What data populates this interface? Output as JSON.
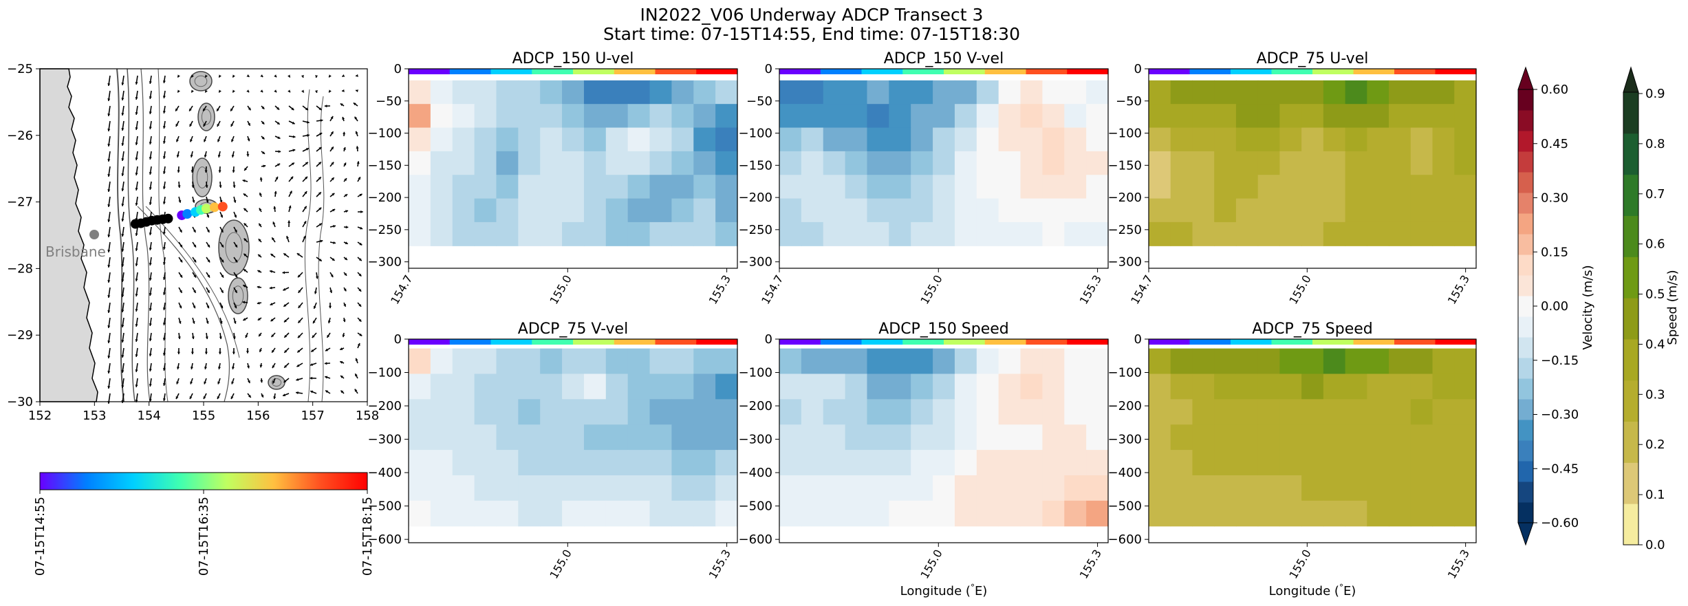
{
  "figure": {
    "title_line1": "IN2022_V06 Underway ADCP Transect 3",
    "title_line2": "Start time: 07-15T14:55, End time: 07-15T18:30"
  },
  "map": {
    "x_ticks": [
      "152",
      "153",
      "154",
      "155",
      "156",
      "157",
      "158"
    ],
    "y_ticks": [
      "−25",
      "−26",
      "−27",
      "−28",
      "−29",
      "−30"
    ],
    "city_label": "Brisbane",
    "land_color": "#d9d9d9",
    "track_lon": [
      153.75,
      153.85,
      153.95,
      154.05,
      154.15,
      154.25,
      154.35,
      154.6,
      154.7,
      154.85,
      154.95,
      155.05,
      155.2,
      155.35
    ],
    "track_lat": [
      -27.33,
      -27.32,
      -27.3,
      -27.28,
      -27.27,
      -27.26,
      -27.25,
      -27.2,
      -27.18,
      -27.15,
      -27.12,
      -27.1,
      -27.08,
      -27.07
    ]
  },
  "time_colorbar": {
    "labels": [
      "07-15T14:55",
      "07-15T16:35",
      "07-15T18:15"
    ],
    "colors": [
      "#6a00ff",
      "#0080ff",
      "#00d0ff",
      "#40ffb0",
      "#c0ff60",
      "#ffc040",
      "#ff5020",
      "#ff0000"
    ]
  },
  "velocity_colorbar": {
    "label": "Velocity (m/s)",
    "ticks": [
      "0.60",
      "0.45",
      "0.30",
      "0.15",
      "0.00",
      "−0.15",
      "−0.30",
      "−0.45",
      "−0.60"
    ],
    "colors": [
      "#053061",
      "#15467f",
      "#2166ac",
      "#3a80bc",
      "#4393c3",
      "#74add1",
      "#92c5de",
      "#b4d6e8",
      "#d1e5f0",
      "#e8f1f7",
      "#f7f7f7",
      "#fbe5d8",
      "#fddbc7",
      "#f8bda0",
      "#f4a582",
      "#e5826a",
      "#d6604d",
      "#c43c3c",
      "#b2182b",
      "#8a0c25",
      "#67001f"
    ]
  },
  "speed_colorbar": {
    "label": "Speed (m/s)",
    "ticks": [
      "0.9",
      "0.8",
      "0.7",
      "0.6",
      "0.5",
      "0.4",
      "0.3",
      "0.2",
      "0.1",
      "0.0"
    ],
    "colors": [
      "#f5ec9f",
      "#ddc877",
      "#c6b84a",
      "#b5ad2e",
      "#a8a823",
      "#8e9b18",
      "#6f9a14",
      "#4c8a1c",
      "#2e7a28",
      "#1c5e30",
      "#1b3d22"
    ]
  },
  "chart_data": [
    {
      "type": "heatmap",
      "title": "ADCP_150 U-vel",
      "xlabel": "",
      "ylabel": "",
      "x_ticks": [
        "154.7",
        "155.0",
        "155.3"
      ],
      "y_ticks": [
        "0",
        "−50",
        "−100",
        "−150",
        "−200",
        "−250",
        "−300"
      ],
      "xlim": [
        154.7,
        155.32
      ],
      "ylim": [
        -310,
        0
      ],
      "depth_floor": -275,
      "colormap": "velocity",
      "values": [
        [
          0.05,
          -0.08,
          -0.1,
          -0.12,
          -0.15,
          -0.18,
          -0.22,
          -0.28,
          -0.4,
          -0.42,
          -0.38,
          -0.32,
          -0.3,
          -0.25,
          -0.2
        ],
        [
          0.22,
          -0.02,
          -0.08,
          -0.12,
          -0.2,
          -0.18,
          -0.15,
          -0.25,
          -0.3,
          -0.3,
          -0.22,
          -0.18,
          -0.22,
          -0.26,
          -0.32
        ],
        [
          0.08,
          -0.06,
          -0.12,
          -0.18,
          -0.24,
          -0.2,
          -0.12,
          -0.15,
          -0.22,
          -0.1,
          -0.06,
          -0.12,
          -0.2,
          -0.32,
          -0.38
        ],
        [
          -0.02,
          -0.1,
          -0.14,
          -0.2,
          -0.26,
          -0.18,
          -0.1,
          -0.12,
          -0.16,
          -0.14,
          -0.1,
          -0.18,
          -0.24,
          -0.3,
          -0.36
        ],
        [
          -0.04,
          -0.12,
          -0.16,
          -0.2,
          -0.22,
          -0.14,
          -0.1,
          -0.12,
          -0.16,
          -0.2,
          -0.24,
          -0.28,
          -0.26,
          -0.22,
          -0.3
        ],
        [
          -0.06,
          -0.14,
          -0.18,
          -0.22,
          -0.18,
          -0.12,
          -0.1,
          -0.14,
          -0.18,
          -0.24,
          -0.26,
          -0.28,
          -0.22,
          -0.2,
          -0.28
        ],
        [
          -0.08,
          -0.14,
          -0.16,
          -0.2,
          -0.18,
          -0.14,
          -0.12,
          -0.16,
          -0.2,
          -0.22,
          -0.22,
          -0.18,
          -0.16,
          -0.18,
          -0.24
        ]
      ]
    },
    {
      "type": "heatmap",
      "title": "ADCP_150 V-vel",
      "xlabel": "",
      "ylabel": "",
      "x_ticks": [
        "154.7",
        "155.0",
        "155.3"
      ],
      "y_ticks": [
        "0",
        "−50",
        "−100",
        "−150",
        "−200",
        "−250",
        "−300"
      ],
      "xlim": [
        154.7,
        155.32
      ],
      "ylim": [
        -310,
        0
      ],
      "depth_floor": -275,
      "colormap": "velocity",
      "values": [
        [
          -0.42,
          -0.4,
          -0.36,
          -0.32,
          -0.3,
          -0.34,
          -0.36,
          -0.3,
          -0.26,
          -0.16,
          -0.02,
          0.04,
          0.02,
          -0.02,
          -0.04
        ],
        [
          -0.36,
          -0.32,
          -0.34,
          -0.36,
          -0.38,
          -0.36,
          -0.3,
          -0.26,
          -0.16,
          -0.06,
          0.06,
          0.1,
          0.04,
          -0.06,
          -0.02
        ],
        [
          -0.24,
          -0.2,
          -0.26,
          -0.3,
          -0.34,
          -0.32,
          -0.26,
          -0.2,
          -0.1,
          -0.02,
          0.04,
          0.08,
          0.12,
          0.06,
          0.0
        ],
        [
          -0.16,
          -0.12,
          -0.16,
          -0.22,
          -0.28,
          -0.3,
          -0.22,
          -0.16,
          -0.08,
          -0.02,
          0.02,
          0.06,
          0.1,
          0.08,
          0.04
        ],
        [
          -0.12,
          -0.1,
          -0.12,
          -0.16,
          -0.22,
          -0.24,
          -0.18,
          -0.12,
          -0.06,
          -0.02,
          0.0,
          0.04,
          0.06,
          0.04,
          0.02
        ],
        [
          -0.16,
          -0.14,
          -0.12,
          -0.14,
          -0.18,
          -0.2,
          -0.16,
          -0.1,
          -0.06,
          -0.04,
          -0.02,
          0.0,
          0.02,
          0.0,
          -0.02
        ],
        [
          -0.18,
          -0.16,
          -0.14,
          -0.12,
          -0.14,
          -0.16,
          -0.14,
          -0.1,
          -0.08,
          -0.06,
          -0.04,
          -0.04,
          -0.02,
          -0.04,
          -0.06
        ]
      ]
    },
    {
      "type": "heatmap",
      "title": "ADCP_75 U-vel",
      "xlabel": "",
      "ylabel": "",
      "x_ticks": [
        "154.7",
        "155.0",
        "155.3"
      ],
      "y_ticks": [
        "0",
        "−50",
        "−100",
        "−150",
        "−200",
        "−250",
        "−300"
      ],
      "xlim": [
        154.7,
        155.32
      ],
      "ylim": [
        -310,
        0
      ],
      "depth_floor": -275,
      "colormap": "speed",
      "values": [
        [
          0.4,
          0.42,
          0.44,
          0.46,
          0.48,
          0.46,
          0.42,
          0.44,
          0.56,
          0.58,
          0.52,
          0.48,
          0.44,
          0.42,
          0.4
        ],
        [
          0.34,
          0.36,
          0.38,
          0.4,
          0.44,
          0.42,
          0.36,
          0.38,
          0.46,
          0.48,
          0.44,
          0.4,
          0.38,
          0.36,
          0.4
        ],
        [
          0.22,
          0.26,
          0.3,
          0.32,
          0.36,
          0.34,
          0.28,
          0.24,
          0.3,
          0.34,
          0.3,
          0.26,
          0.18,
          0.3,
          0.36
        ],
        [
          0.1,
          0.18,
          0.24,
          0.28,
          0.3,
          0.28,
          0.24,
          0.22,
          0.24,
          0.28,
          0.28,
          0.26,
          0.24,
          0.3,
          0.34
        ],
        [
          0.16,
          0.2,
          0.24,
          0.26,
          0.26,
          0.22,
          0.18,
          0.2,
          0.22,
          0.26,
          0.3,
          0.3,
          0.28,
          0.28,
          0.32
        ],
        [
          0.22,
          0.24,
          0.24,
          0.26,
          0.24,
          0.2,
          0.18,
          0.2,
          0.24,
          0.28,
          0.3,
          0.3,
          0.28,
          0.28,
          0.32
        ],
        [
          0.26,
          0.26,
          0.24,
          0.24,
          0.22,
          0.22,
          0.22,
          0.24,
          0.26,
          0.28,
          0.28,
          0.28,
          0.28,
          0.3,
          0.32
        ]
      ]
    },
    {
      "type": "heatmap",
      "title": "ADCP_75 V-vel",
      "xlabel": "",
      "ylabel": "",
      "x_ticks": [
        "155.0",
        "155.3"
      ],
      "y_ticks": [
        "0",
        "−100",
        "−200",
        "−300",
        "−400",
        "−500",
        "−600"
      ],
      "xlim": [
        154.7,
        155.32
      ],
      "ylim": [
        -610,
        0
      ],
      "depth_floor": -560,
      "colormap": "velocity",
      "values": [
        [
          0.1,
          -0.06,
          -0.1,
          -0.14,
          -0.18,
          -0.2,
          -0.22,
          -0.18,
          -0.2,
          -0.24,
          -0.22,
          -0.2,
          -0.18,
          -0.22,
          -0.24
        ],
        [
          -0.06,
          -0.1,
          -0.12,
          -0.16,
          -0.18,
          -0.2,
          -0.18,
          -0.12,
          -0.08,
          -0.16,
          -0.22,
          -0.24,
          -0.22,
          -0.28,
          -0.32
        ],
        [
          -0.1,
          -0.12,
          -0.14,
          -0.16,
          -0.2,
          -0.22,
          -0.2,
          -0.18,
          -0.16,
          -0.2,
          -0.24,
          -0.26,
          -0.28,
          -0.3,
          -0.3
        ],
        [
          -0.1,
          -0.1,
          -0.12,
          -0.14,
          -0.16,
          -0.18,
          -0.18,
          -0.2,
          -0.22,
          -0.24,
          -0.22,
          -0.24,
          -0.26,
          -0.28,
          -0.26
        ],
        [
          -0.06,
          -0.08,
          -0.1,
          -0.12,
          -0.14,
          -0.16,
          -0.18,
          -0.18,
          -0.16,
          -0.16,
          -0.18,
          -0.2,
          -0.22,
          -0.22,
          -0.2
        ],
        [
          -0.04,
          -0.06,
          -0.08,
          -0.1,
          -0.12,
          -0.14,
          -0.14,
          -0.12,
          -0.1,
          -0.1,
          -0.12,
          -0.14,
          -0.16,
          -0.16,
          -0.14
        ],
        [
          -0.02,
          -0.04,
          -0.06,
          -0.08,
          -0.08,
          -0.1,
          -0.1,
          -0.08,
          -0.06,
          -0.06,
          -0.08,
          -0.1,
          -0.1,
          -0.1,
          -0.08
        ]
      ]
    },
    {
      "type": "heatmap",
      "title": "ADCP_150 Speed",
      "xlabel": "Longitude ($^\\circ$E)",
      "ylabel": "",
      "x_ticks": [
        "155.0",
        "155.3"
      ],
      "y_ticks": [
        "0",
        "−100",
        "−200",
        "−300",
        "−400",
        "−500",
        "−600"
      ],
      "xlim": [
        154.7,
        155.32
      ],
      "ylim": [
        -610,
        0
      ],
      "depth_floor": -560,
      "colormap": "velocity",
      "values": [
        [
          -0.24,
          -0.26,
          -0.28,
          -0.3,
          -0.34,
          -0.36,
          -0.32,
          -0.26,
          -0.18,
          -0.08,
          0.02,
          0.06,
          0.04,
          0.0,
          -0.02
        ],
        [
          -0.12,
          -0.1,
          -0.14,
          -0.2,
          -0.28,
          -0.3,
          -0.24,
          -0.16,
          -0.06,
          0.02,
          0.08,
          0.1,
          0.06,
          0.02,
          0.0
        ],
        [
          -0.16,
          -0.14,
          -0.16,
          -0.18,
          -0.22,
          -0.24,
          -0.18,
          -0.12,
          -0.06,
          -0.02,
          0.04,
          0.06,
          0.04,
          0.02,
          0.0
        ],
        [
          -0.14,
          -0.14,
          -0.14,
          -0.16,
          -0.18,
          -0.18,
          -0.14,
          -0.1,
          -0.06,
          -0.02,
          0.0,
          0.02,
          0.04,
          0.04,
          0.02
        ],
        [
          -0.1,
          -0.1,
          -0.1,
          -0.12,
          -0.12,
          -0.12,
          -0.08,
          -0.04,
          0.02,
          0.04,
          0.04,
          0.04,
          0.04,
          0.06,
          0.06
        ],
        [
          -0.08,
          -0.08,
          -0.08,
          -0.08,
          -0.08,
          -0.06,
          -0.04,
          0.0,
          0.04,
          0.06,
          0.06,
          0.06,
          0.08,
          0.1,
          0.12
        ],
        [
          -0.06,
          -0.06,
          -0.06,
          -0.06,
          -0.04,
          -0.02,
          0.0,
          0.02,
          0.04,
          0.06,
          0.06,
          0.08,
          0.1,
          0.16,
          0.2
        ]
      ]
    },
    {
      "type": "heatmap",
      "title": "ADCP_75 Speed",
      "xlabel": "Longitude ($^\\circ$E)",
      "ylabel": "",
      "x_ticks": [
        "155.0",
        "155.3"
      ],
      "y_ticks": [
        "0",
        "−100",
        "−200",
        "−300",
        "−400",
        "−500",
        "−600"
      ],
      "xlim": [
        154.7,
        155.32
      ],
      "ylim": [
        -610,
        0
      ],
      "depth_floor": -560,
      "colormap": "speed",
      "values": [
        [
          0.4,
          0.42,
          0.42,
          0.44,
          0.46,
          0.48,
          0.52,
          0.56,
          0.58,
          0.54,
          0.5,
          0.46,
          0.42,
          0.4,
          0.38
        ],
        [
          0.2,
          0.26,
          0.3,
          0.34,
          0.36,
          0.38,
          0.4,
          0.42,
          0.4,
          0.36,
          0.32,
          0.3,
          0.32,
          0.34,
          0.36
        ],
        [
          0.22,
          0.24,
          0.28,
          0.3,
          0.32,
          0.32,
          0.3,
          0.28,
          0.26,
          0.28,
          0.3,
          0.32,
          0.34,
          0.32,
          0.32
        ],
        [
          0.24,
          0.26,
          0.28,
          0.3,
          0.3,
          0.28,
          0.26,
          0.26,
          0.28,
          0.3,
          0.32,
          0.32,
          0.3,
          0.3,
          0.3
        ],
        [
          0.22,
          0.24,
          0.26,
          0.26,
          0.26,
          0.26,
          0.26,
          0.28,
          0.28,
          0.28,
          0.3,
          0.3,
          0.3,
          0.3,
          0.3
        ],
        [
          0.2,
          0.22,
          0.24,
          0.24,
          0.24,
          0.24,
          0.24,
          0.26,
          0.26,
          0.26,
          0.28,
          0.28,
          0.28,
          0.28,
          0.28
        ],
        [
          0.18,
          0.2,
          0.2,
          0.22,
          0.22,
          0.22,
          0.22,
          0.24,
          0.24,
          0.24,
          0.26,
          0.26,
          0.26,
          0.26,
          0.26
        ]
      ]
    }
  ]
}
